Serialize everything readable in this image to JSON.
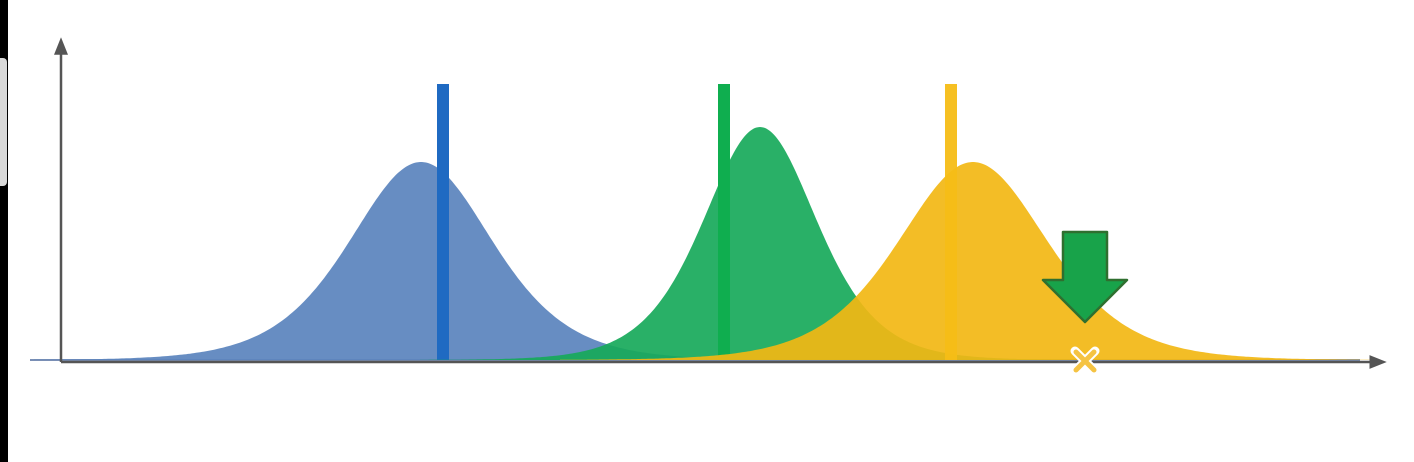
{
  "colors": {
    "background": "#ffffff",
    "axis": "#555555",
    "blue": "#5b84bd",
    "blue_marker": "#1f6ac2",
    "green": "#17a95a",
    "green_marker": "#0fae4f",
    "yellow": "#f2b713",
    "yellow_marker": "#f6bd16",
    "arrow": "#18a34a",
    "arrow_outline": "#2f6f2f",
    "point_marker": "#f5c343"
  },
  "distributions": [
    {
      "name": "blue",
      "color_key": "blue",
      "marker_key": "blue_marker"
    },
    {
      "name": "green",
      "color_key": "green",
      "marker_key": "green_marker"
    },
    {
      "name": "yellow",
      "color_key": "yellow",
      "marker_key": "yellow_marker"
    }
  ],
  "icons": {
    "arrow": "down-arrow-icon",
    "point": "x-mark-icon"
  }
}
